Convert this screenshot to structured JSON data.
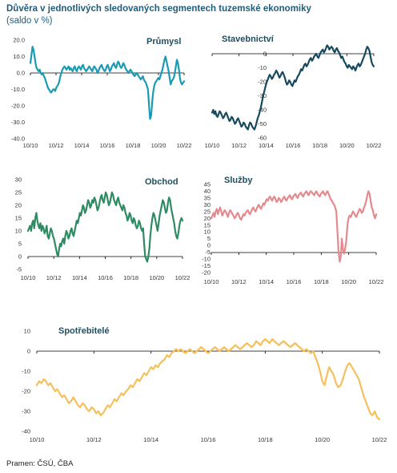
{
  "header": {
    "title": "Důvěra v jednotlivých sledovaných segmentech tuzemské ekonomiky",
    "subtitle": "(saldo v %)"
  },
  "footer": {
    "source": "Pramen: ČSÚ, ČBA"
  },
  "chart_data": [
    {
      "type": "line",
      "title": "Průmysl",
      "color": "#1a9bb3",
      "x_start": "10/10",
      "x_end": "10/22",
      "xticks": [
        "10/10",
        "10/12",
        "10/14",
        "10/16",
        "10/18",
        "10/20",
        "10/22"
      ],
      "yticks": [
        "20.0",
        "10.0",
        "0.0",
        "-10.0",
        "-20.0",
        "-30.0",
        "-40.0"
      ],
      "ylim": [
        -40,
        20
      ],
      "y": [
        6,
        11,
        16,
        14,
        10,
        6,
        3,
        2,
        1,
        2,
        0,
        -1,
        0,
        -2,
        -3,
        -5,
        -7,
        -9,
        -10,
        -11,
        -12,
        -11,
        -10,
        -10,
        -11,
        -9,
        -8,
        -7,
        -5,
        -2,
        0,
        2,
        3,
        4,
        3,
        2,
        3,
        4,
        2,
        3,
        2,
        1,
        3,
        4,
        2,
        1,
        3,
        4,
        3,
        2,
        4,
        5,
        3,
        2,
        1,
        2,
        3,
        4,
        3,
        2,
        1,
        3,
        4,
        3,
        2,
        0,
        1,
        3,
        4,
        5,
        3,
        2,
        1,
        2,
        4,
        5,
        3,
        1,
        2,
        4,
        5,
        6,
        4,
        3,
        5,
        7,
        6,
        4,
        3,
        4,
        6,
        5,
        3,
        2,
        1,
        0,
        1,
        2,
        1,
        0,
        -1,
        -2,
        -1,
        0,
        -1,
        -2,
        -3,
        -4,
        -3,
        -2,
        -4,
        -5,
        -6,
        -8,
        -10,
        -20,
        -28,
        -26,
        -18,
        -12,
        -8,
        -6,
        -5,
        -4,
        -3,
        -4,
        -2,
        0,
        2,
        5,
        8,
        10,
        7,
        4,
        1,
        -3,
        -7,
        -5,
        -4,
        -3,
        0,
        4,
        8,
        6,
        2,
        -3,
        -6,
        -7,
        -6,
        -5
      ]
    },
    {
      "type": "line",
      "title": "Stavebnictví",
      "color": "#16495e",
      "x_start": "10/10",
      "x_end": "10/22",
      "xticks": [
        "10/10",
        "10/12",
        "10/14",
        "10/16",
        "10/18",
        "10/20",
        "10/22"
      ],
      "yticks": [
        "0",
        "-10",
        "-20",
        "-30",
        "-40",
        "-50",
        "-60"
      ],
      "ylim": [
        -60,
        0
      ],
      "y": [
        -42,
        -40,
        -43,
        -41,
        -44,
        -45,
        -43,
        -41,
        -42,
        -44,
        -46,
        -45,
        -43,
        -42,
        -44,
        -46,
        -48,
        -47,
        -45,
        -46,
        -48,
        -50,
        -49,
        -47,
        -46,
        -48,
        -50,
        -52,
        -51,
        -49,
        -50,
        -52,
        -53,
        -54,
        -51,
        -49,
        -50,
        -52,
        -53,
        -54,
        -52,
        -49,
        -46,
        -44,
        -41,
        -38,
        -34,
        -30,
        -27,
        -24,
        -21,
        -19,
        -17,
        -15,
        -16,
        -18,
        -17,
        -15,
        -14,
        -12,
        -13,
        -15,
        -17,
        -16,
        -14,
        -13,
        -15,
        -17,
        -20,
        -22,
        -21,
        -19,
        -20,
        -22,
        -23,
        -21,
        -19,
        -20,
        -18,
        -16,
        -15,
        -13,
        -11,
        -12,
        -10,
        -8,
        -7,
        -9,
        -8,
        -6,
        -4,
        -3,
        -5,
        -4,
        -2,
        -1,
        0,
        -2,
        -3,
        -1,
        1,
        2,
        3,
        1,
        2,
        4,
        6,
        5,
        3,
        4,
        5,
        4,
        2,
        1,
        3,
        4,
        2,
        1,
        -1,
        -3,
        -2,
        -4,
        -6,
        -7,
        -9,
        -10,
        -8,
        -9,
        -10,
        -11,
        -9,
        -10,
        -12,
        -10,
        -8,
        -7,
        -9,
        -8,
        -6,
        -4,
        -2,
        0,
        3,
        5,
        4,
        2,
        -2,
        -6,
        -8,
        -9
      ]
    },
    {
      "type": "line",
      "title": "Obchod",
      "color": "#2e8b63",
      "x_start": "10/10",
      "x_end": "10/22",
      "xticks": [
        "10/10",
        "10/12",
        "10/14",
        "10/16",
        "10/18",
        "10/20",
        "10/22"
      ],
      "yticks": [
        "30",
        "25",
        "20",
        "15",
        "10",
        "5",
        "0",
        "-5"
      ],
      "ylim": [
        -5,
        30
      ],
      "y": [
        10,
        11,
        12,
        10,
        13,
        14,
        11,
        15,
        17,
        14,
        12,
        11,
        13,
        10,
        12,
        11,
        9,
        10,
        12,
        8,
        7,
        9,
        11,
        10,
        8,
        7,
        5,
        3,
        1,
        0,
        3,
        5,
        4,
        6,
        7,
        5,
        8,
        10,
        9,
        7,
        8,
        10,
        11,
        9,
        8,
        10,
        12,
        14,
        13,
        15,
        17,
        16,
        18,
        20,
        19,
        17,
        18,
        20,
        22,
        21,
        19,
        20,
        22,
        21,
        23,
        22,
        20,
        18,
        19,
        21,
        23,
        24,
        22,
        21,
        23,
        25,
        24,
        22,
        20,
        21,
        23,
        25,
        24,
        22,
        21,
        20,
        22,
        23,
        21,
        20,
        19,
        18,
        20,
        19,
        17,
        16,
        14,
        15,
        17,
        16,
        14,
        13,
        15,
        14,
        12,
        11,
        12,
        14,
        13,
        11,
        10,
        11,
        5,
        0,
        -1,
        -2,
        0,
        3,
        8,
        12,
        15,
        17,
        16,
        14,
        12,
        10,
        13,
        16,
        18,
        20,
        22,
        21,
        19,
        17,
        18,
        21,
        23,
        22,
        19,
        17,
        15,
        13,
        10,
        8,
        7,
        9,
        12,
        14,
        15,
        14
      ]
    },
    {
      "type": "line",
      "title": "Služby",
      "color": "#e48a8e",
      "x_start": "10/10",
      "x_end": "10/22",
      "xticks": [
        "10/10",
        "10/12",
        "10/14",
        "10/16",
        "10/18",
        "10/20",
        "10/22"
      ],
      "yticks": [
        "45",
        "40",
        "35",
        "30",
        "25",
        "20",
        "15",
        "10",
        "5",
        "0",
        "-5",
        "-10",
        "-15",
        "-20"
      ],
      "ylim": [
        -20,
        45
      ],
      "y": [
        20,
        22,
        24,
        21,
        25,
        27,
        23,
        26,
        28,
        25,
        22,
        24,
        26,
        25,
        23,
        21,
        24,
        26,
        25,
        23,
        22,
        20,
        21,
        23,
        24,
        22,
        20,
        19,
        21,
        23,
        22,
        24,
        25,
        26,
        24,
        23,
        25,
        27,
        28,
        26,
        25,
        27,
        29,
        30,
        28,
        27,
        29,
        31,
        30,
        32,
        34,
        33,
        35,
        36,
        34,
        33,
        35,
        36,
        34,
        32,
        33,
        35,
        34,
        32,
        33,
        35,
        36,
        34,
        33,
        35,
        36,
        37,
        35,
        34,
        36,
        37,
        38,
        36,
        35,
        37,
        38,
        39,
        37,
        36,
        38,
        39,
        40,
        38,
        37,
        39,
        40,
        39,
        38,
        37,
        39,
        40,
        38,
        37,
        36,
        38,
        39,
        40,
        38,
        37,
        39,
        40,
        38,
        36,
        34,
        33,
        31,
        30,
        28,
        25,
        10,
        -5,
        -12,
        -8,
        5,
        -3,
        -6,
        -2,
        4,
        15,
        20,
        22,
        21,
        23,
        25,
        24,
        22,
        21,
        23,
        25,
        27,
        26,
        24,
        25,
        28,
        30,
        33,
        37,
        40,
        38,
        33,
        28,
        26,
        22,
        20,
        23
      ]
    },
    {
      "type": "line",
      "title": "Spotřebitelé",
      "color": "#f5bf5c",
      "x_start": "10/10",
      "x_end": "10/22",
      "xticks": [
        "10/10",
        "10/12",
        "10/14",
        "10/16",
        "10/18",
        "10/20",
        "10/22"
      ],
      "yticks": [
        "10",
        "0",
        "-10",
        "-20",
        "-30",
        "-40"
      ],
      "ylim": [
        -40,
        10
      ],
      "y": [
        -17,
        -15,
        -16,
        -14,
        -15,
        -17,
        -16,
        -18,
        -20,
        -19,
        -21,
        -23,
        -22,
        -24,
        -26,
        -25,
        -23,
        -25,
        -27,
        -28,
        -26,
        -27,
        -29,
        -30,
        -28,
        -29,
        -31,
        -30,
        -32,
        -31,
        -29,
        -27,
        -28,
        -26,
        -24,
        -25,
        -23,
        -21,
        -22,
        -20,
        -19,
        -17,
        -18,
        -16,
        -14,
        -15,
        -13,
        -11,
        -12,
        -10,
        -8,
        -9,
        -7,
        -8,
        -6,
        -5,
        -4,
        -2,
        -3,
        -1,
        0,
        1,
        0,
        1,
        0,
        -1,
        0,
        1,
        0,
        -1,
        0,
        1,
        2,
        1,
        0,
        -1,
        0,
        1,
        2,
        1,
        0,
        1,
        2,
        1,
        0,
        1,
        2,
        3,
        2,
        1,
        2,
        3,
        4,
        3,
        2,
        3,
        5,
        4,
        3,
        5,
        6,
        5,
        4,
        6,
        5,
        4,
        3,
        4,
        5,
        4,
        3,
        2,
        3,
        4,
        3,
        2,
        1,
        0,
        1,
        0,
        -1,
        0,
        -3,
        -6,
        -10,
        -15,
        -17,
        -12,
        -8,
        -10,
        -12,
        -16,
        -18,
        -17,
        -14,
        -10,
        -7,
        -6,
        -8,
        -10,
        -12,
        -14,
        -18,
        -22,
        -25,
        -28,
        -31,
        -32,
        -30,
        -33,
        -34
      ]
    }
  ]
}
